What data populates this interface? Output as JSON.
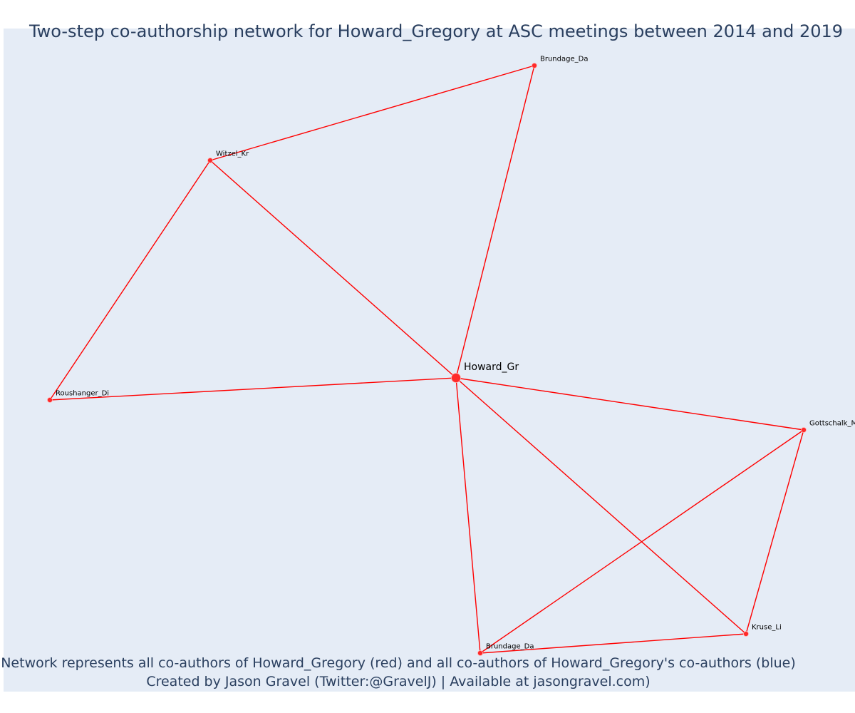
{
  "title": "Two-step co-authorship network for Howard_Gregory at ASC meetings between 2014 and 2019",
  "caption": {
    "line1": "Network represents all co-authors of Howard_Gregory (red) and all co-authors of Howard_Gregory's co-authors (blue)",
    "line2": "Created by Jason Gravel (Twitter:@GravelJ) | Available at jasongravel.com)"
  },
  "colors": {
    "plot_background": "#e5ecf6",
    "edge": "#ff0000",
    "node_fill": "#ff2a2a",
    "node_outline": "#ffb3b3",
    "title": "#2a3f5f"
  },
  "network": {
    "nodes": [
      {
        "id": "howard",
        "label": "Howard_Gr",
        "focal": true
      },
      {
        "id": "brundage_top",
        "label": "Brundage_Da",
        "focal": false
      },
      {
        "id": "witzel",
        "label": "Witzel_Kr",
        "focal": false
      },
      {
        "id": "roushanger",
        "label": "Roushanger_Di",
        "focal": false
      },
      {
        "id": "gottschalk",
        "label": "Gottschalk_M",
        "focal": false
      },
      {
        "id": "kruse",
        "label": "Kruse_Li",
        "focal": false
      },
      {
        "id": "brundage_bottom",
        "label": "Brundage_Da",
        "focal": false
      }
    ],
    "edges": [
      [
        "witzel",
        "brundage_top"
      ],
      [
        "witzel",
        "roushanger"
      ],
      [
        "witzel",
        "howard"
      ],
      [
        "brundage_top",
        "howard"
      ],
      [
        "roushanger",
        "howard"
      ],
      [
        "howard",
        "gottschalk"
      ],
      [
        "howard",
        "kruse"
      ],
      [
        "howard",
        "brundage_bottom"
      ],
      [
        "gottschalk",
        "brundage_bottom"
      ],
      [
        "gottschalk",
        "kruse"
      ],
      [
        "kruse",
        "brundage_bottom"
      ]
    ]
  }
}
